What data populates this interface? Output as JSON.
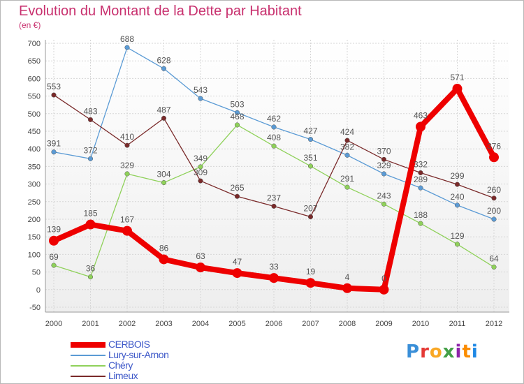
{
  "chart_data": {
    "type": "line",
    "title": "Evolution du Montant de la Dette par Habitant",
    "subtitle": "(en €)",
    "x": [
      "2000",
      "2001",
      "2002",
      "2003",
      "2004",
      "2005",
      "2006",
      "2007",
      "2008",
      "2009",
      "2010",
      "2011",
      "2012"
    ],
    "ylim": [
      -50,
      700
    ],
    "yticks": [
      "-50",
      "0",
      "50",
      "100",
      "150",
      "200",
      "250",
      "300",
      "350",
      "400",
      "450",
      "500",
      "550",
      "600",
      "650",
      "700"
    ],
    "grid": true,
    "legend_position": "bottom-left",
    "series": [
      {
        "name": "CERBOIS",
        "color": "#ee0000",
        "values": [
          139,
          185,
          167,
          86,
          63,
          47,
          33,
          19,
          4,
          0,
          463,
          571,
          376
        ]
      },
      {
        "name": "Lury-sur-Arnon",
        "color": "#5b9bd5",
        "values": [
          391,
          372,
          688,
          628,
          543,
          503,
          462,
          427,
          382,
          329,
          289,
          240,
          200
        ]
      },
      {
        "name": "Chéry",
        "color": "#8fd15a",
        "values": [
          69,
          36,
          329,
          304,
          349,
          468,
          408,
          351,
          291,
          243,
          188,
          129,
          64
        ]
      },
      {
        "name": "Limeux",
        "color": "#7a2a2a",
        "values": [
          553,
          483,
          410,
          487,
          309,
          265,
          237,
          207,
          424,
          370,
          332,
          299,
          260
        ]
      }
    ]
  },
  "logo": {
    "text": "Proxiti"
  }
}
